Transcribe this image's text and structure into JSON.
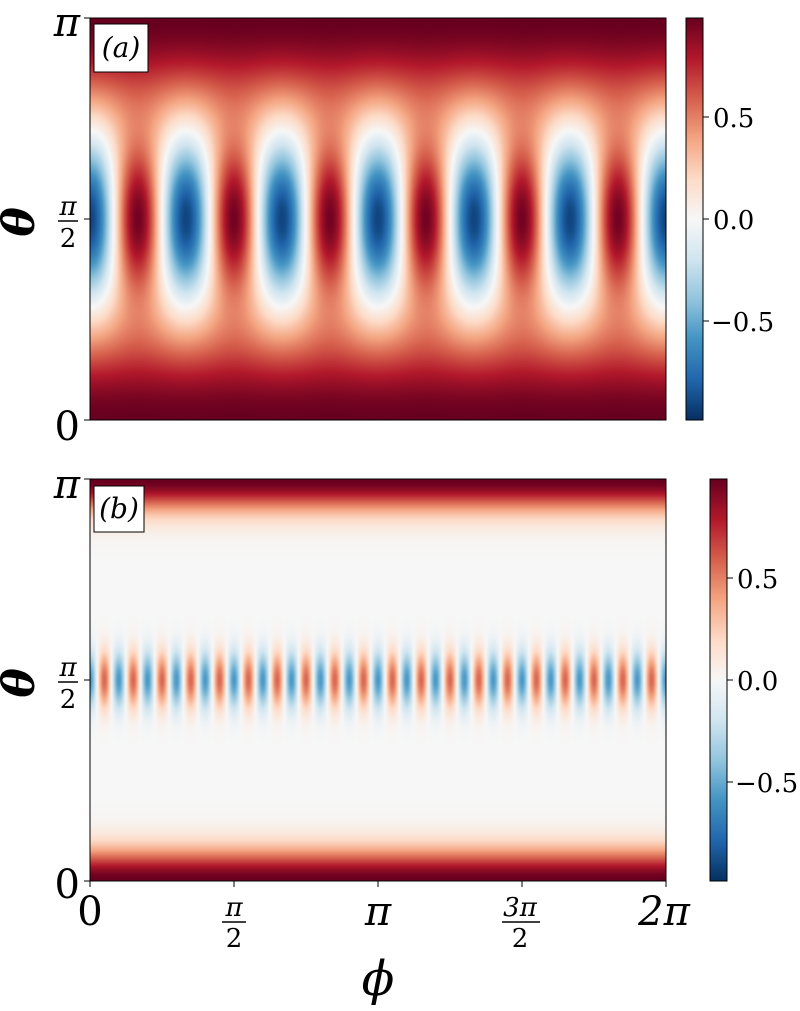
{
  "chart_data": [
    {
      "type": "heatmap",
      "panel_label": "(a)",
      "xlabel": "",
      "ylabel": "θ",
      "x_range": [
        0,
        6.2832
      ],
      "y_range": [
        0,
        3.1416
      ],
      "y_ticks": [
        {
          "value": 0,
          "label": "0"
        },
        {
          "value": 1.5708,
          "label": "π/2"
        },
        {
          "value": 3.1416,
          "label": "π"
        }
      ],
      "x_ticks": [],
      "colormap": "RdBu_r",
      "clim": [
        -0.95,
        0.95
      ],
      "colorbar_ticks": [
        {
          "value": 0.5,
          "label": "0.5"
        },
        {
          "value": 0.0,
          "label": "0.0"
        },
        {
          "value": -0.5,
          "label": "−0.5"
        }
      ],
      "field": {
        "azimuthal_periods": 6,
        "equatorial_amplitude": 0.9,
        "equatorial_width": 0.6,
        "polar_amplitude": 0.95,
        "polar_width": 0.75
      }
    },
    {
      "type": "heatmap",
      "panel_label": "(b)",
      "xlabel": "ϕ",
      "ylabel": "θ",
      "x_range": [
        0,
        6.2832
      ],
      "y_range": [
        0,
        3.1416
      ],
      "x_ticks": [
        {
          "value": 0,
          "label": "0"
        },
        {
          "value": 1.5708,
          "label": "π/2"
        },
        {
          "value": 3.1416,
          "label": "π"
        },
        {
          "value": 4.7124,
          "label": "3π/2"
        },
        {
          "value": 6.2832,
          "label": "2π"
        }
      ],
      "y_ticks": [
        {
          "value": 0,
          "label": "0"
        },
        {
          "value": 1.5708,
          "label": "π/2"
        },
        {
          "value": 3.1416,
          "label": "π"
        }
      ],
      "colormap": "RdBu_r",
      "clim": [
        -0.95,
        0.95
      ],
      "colorbar_ticks": [
        {
          "value": 0.5,
          "label": "0.5"
        },
        {
          "value": 0.0,
          "label": "0.0"
        },
        {
          "value": -0.5,
          "label": "−0.5"
        }
      ],
      "field": {
        "azimuthal_periods": 20,
        "equatorial_amplitude": 0.55,
        "equatorial_width": 0.22,
        "polar_amplitude": 0.95,
        "polar_width": 0.25
      }
    }
  ],
  "colors": {
    "colormap_stops": [
      "#053061",
      "#2166ac",
      "#4393c3",
      "#92c5de",
      "#d1e5f0",
      "#f7f7f7",
      "#fddbc7",
      "#f4a582",
      "#d6604d",
      "#b2182b",
      "#67001f"
    ],
    "frame": "#000000"
  }
}
